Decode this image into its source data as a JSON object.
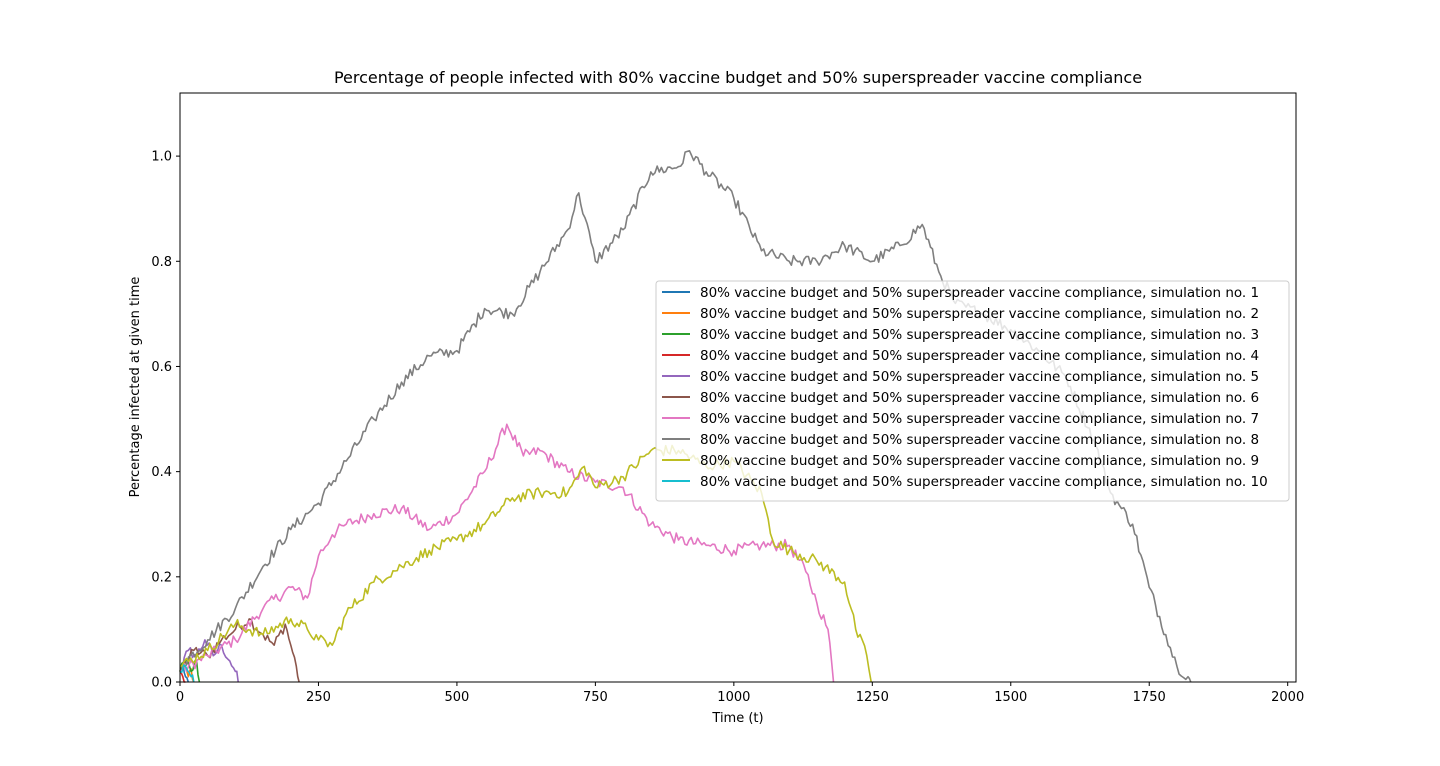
{
  "chart_data": {
    "type": "line",
    "title": "Percentage of people infected with 80% vaccine budget and 50% superspreader vaccine compliance",
    "xlabel": "Time (t)",
    "ylabel": "Percentage infected at given time",
    "xlim": [
      0,
      2015
    ],
    "ylim": [
      0,
      1.12
    ],
    "xticks": [
      0,
      250,
      500,
      750,
      1000,
      1250,
      1500,
      1750,
      2000
    ],
    "yticks": [
      0.0,
      0.2,
      0.4,
      0.6,
      0.8,
      1.0
    ],
    "xtick_labels": [
      "0",
      "250",
      "500",
      "750",
      "1000",
      "1250",
      "1500",
      "1750",
      "2000"
    ],
    "ytick_labels": [
      "0.0",
      "0.2",
      "0.4",
      "0.6",
      "0.8",
      "1.0"
    ],
    "grid": false,
    "legend_position": "center-right",
    "series": [
      {
        "name": "80% vaccine budget and 50% superspreader vaccine compliance, simulation no. 1",
        "color": "#1f77b4",
        "points": [
          [
            0,
            0.02
          ],
          [
            5,
            0.035
          ],
          [
            10,
            0.01
          ],
          [
            15,
            0.0
          ]
        ]
      },
      {
        "name": "80% vaccine budget and 50% superspreader vaccine compliance, simulation no. 2",
        "color": "#ff7f0e",
        "points": [
          [
            0,
            0.02
          ],
          [
            8,
            0.03
          ],
          [
            15,
            0.01
          ],
          [
            20,
            0.025
          ],
          [
            25,
            0.0
          ]
        ]
      },
      {
        "name": "80% vaccine budget and 50% superspreader vaccine compliance, simulation no. 3",
        "color": "#2ca02c",
        "points": [
          [
            0,
            0.02
          ],
          [
            10,
            0.04
          ],
          [
            20,
            0.02
          ],
          [
            30,
            0.04
          ],
          [
            35,
            0.0
          ]
        ]
      },
      {
        "name": "80% vaccine budget and 50% superspreader vaccine compliance, simulation no. 4",
        "color": "#d62728",
        "points": [
          [
            0,
            0.02
          ],
          [
            5,
            0.01
          ],
          [
            10,
            0.0
          ]
        ]
      },
      {
        "name": "80% vaccine budget and 50% superspreader vaccine compliance, simulation no. 5",
        "color": "#9467bd",
        "points": [
          [
            0,
            0.02
          ],
          [
            15,
            0.06
          ],
          [
            30,
            0.05
          ],
          [
            45,
            0.08
          ],
          [
            60,
            0.05
          ],
          [
            75,
            0.07
          ],
          [
            90,
            0.04
          ],
          [
            100,
            0.02
          ],
          [
            105,
            0.0
          ]
        ]
      },
      {
        "name": "80% vaccine budget and 50% superspreader vaccine compliance, simulation no. 6",
        "color": "#8c564b",
        "points": [
          [
            0,
            0.02
          ],
          [
            25,
            0.06
          ],
          [
            50,
            0.05
          ],
          [
            75,
            0.08
          ],
          [
            100,
            0.1
          ],
          [
            125,
            0.12
          ],
          [
            150,
            0.09
          ],
          [
            170,
            0.07
          ],
          [
            190,
            0.11
          ],
          [
            200,
            0.07
          ],
          [
            210,
            0.03
          ],
          [
            215,
            0.0
          ]
        ]
      },
      {
        "name": "80% vaccine budget and 50% superspreader vaccine compliance, simulation no. 7",
        "color": "#e377c2",
        "points": [
          [
            0,
            0.02
          ],
          [
            50,
            0.05
          ],
          [
            100,
            0.08
          ],
          [
            150,
            0.14
          ],
          [
            200,
            0.18
          ],
          [
            230,
            0.16
          ],
          [
            250,
            0.24
          ],
          [
            275,
            0.28
          ],
          [
            300,
            0.3
          ],
          [
            350,
            0.32
          ],
          [
            400,
            0.33
          ],
          [
            450,
            0.29
          ],
          [
            500,
            0.32
          ],
          [
            550,
            0.4
          ],
          [
            590,
            0.49
          ],
          [
            620,
            0.43
          ],
          [
            650,
            0.44
          ],
          [
            700,
            0.4
          ],
          [
            750,
            0.38
          ],
          [
            800,
            0.37
          ],
          [
            850,
            0.3
          ],
          [
            900,
            0.27
          ],
          [
            950,
            0.26
          ],
          [
            1000,
            0.25
          ],
          [
            1050,
            0.26
          ],
          [
            1100,
            0.26
          ],
          [
            1130,
            0.21
          ],
          [
            1150,
            0.15
          ],
          [
            1170,
            0.1
          ],
          [
            1180,
            0.0
          ]
        ]
      },
      {
        "name": "80% vaccine budget and 50% superspreader vaccine compliance, simulation no. 8",
        "color": "#7f7f7f",
        "points": [
          [
            0,
            0.03
          ],
          [
            50,
            0.08
          ],
          [
            100,
            0.14
          ],
          [
            150,
            0.22
          ],
          [
            200,
            0.29
          ],
          [
            250,
            0.34
          ],
          [
            300,
            0.42
          ],
          [
            350,
            0.5
          ],
          [
            400,
            0.57
          ],
          [
            450,
            0.62
          ],
          [
            500,
            0.63
          ],
          [
            550,
            0.71
          ],
          [
            600,
            0.7
          ],
          [
            650,
            0.78
          ],
          [
            700,
            0.86
          ],
          [
            720,
            0.93
          ],
          [
            750,
            0.8
          ],
          [
            800,
            0.86
          ],
          [
            850,
            0.97
          ],
          [
            900,
            0.98
          ],
          [
            920,
            1.01
          ],
          [
            950,
            0.97
          ],
          [
            1000,
            0.92
          ],
          [
            1050,
            0.82
          ],
          [
            1100,
            0.8
          ],
          [
            1150,
            0.8
          ],
          [
            1200,
            0.83
          ],
          [
            1250,
            0.8
          ],
          [
            1300,
            0.83
          ],
          [
            1340,
            0.87
          ],
          [
            1370,
            0.78
          ],
          [
            1400,
            0.72
          ],
          [
            1450,
            0.7
          ],
          [
            1500,
            0.67
          ],
          [
            1550,
            0.63
          ],
          [
            1600,
            0.58
          ],
          [
            1650,
            0.46
          ],
          [
            1680,
            0.36
          ],
          [
            1700,
            0.33
          ],
          [
            1720,
            0.3
          ],
          [
            1750,
            0.18
          ],
          [
            1780,
            0.09
          ],
          [
            1800,
            0.03
          ],
          [
            1820,
            0.01
          ],
          [
            1825,
            0.0
          ]
        ]
      },
      {
        "name": "80% vaccine budget and 50% superspreader vaccine compliance, simulation no. 9",
        "color": "#bcbd22",
        "points": [
          [
            0,
            0.03
          ],
          [
            50,
            0.06
          ],
          [
            100,
            0.11
          ],
          [
            150,
            0.09
          ],
          [
            200,
            0.12
          ],
          [
            230,
            0.1
          ],
          [
            250,
            0.08
          ],
          [
            275,
            0.07
          ],
          [
            300,
            0.13
          ],
          [
            350,
            0.19
          ],
          [
            400,
            0.22
          ],
          [
            450,
            0.25
          ],
          [
            500,
            0.27
          ],
          [
            550,
            0.3
          ],
          [
            600,
            0.35
          ],
          [
            650,
            0.36
          ],
          [
            700,
            0.36
          ],
          [
            730,
            0.41
          ],
          [
            750,
            0.37
          ],
          [
            800,
            0.39
          ],
          [
            850,
            0.44
          ],
          [
            900,
            0.44
          ],
          [
            950,
            0.41
          ],
          [
            1000,
            0.42
          ],
          [
            1050,
            0.36
          ],
          [
            1070,
            0.27
          ],
          [
            1100,
            0.25
          ],
          [
            1150,
            0.23
          ],
          [
            1200,
            0.19
          ],
          [
            1220,
            0.1
          ],
          [
            1240,
            0.05
          ],
          [
            1248,
            0.0
          ]
        ]
      },
      {
        "name": "80% vaccine budget and 50% superspreader vaccine compliance, simulation no. 10",
        "color": "#17becf",
        "points": [
          [
            0,
            0.02
          ],
          [
            10,
            0.03
          ],
          [
            20,
            0.01
          ],
          [
            25,
            0.0
          ]
        ]
      }
    ]
  }
}
